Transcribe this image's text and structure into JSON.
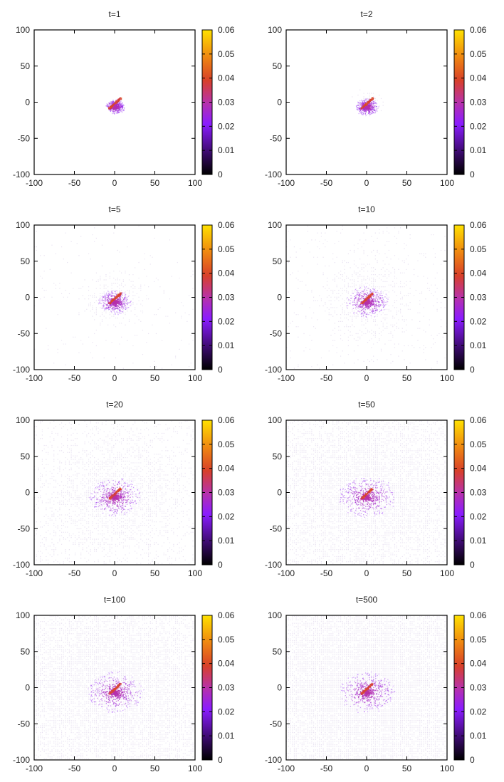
{
  "chart_data": [
    {
      "type": "heatmap",
      "title": "t=1",
      "xlim": [
        -100,
        100
      ],
      "ylim": [
        -100,
        100
      ],
      "xticks": [
        "-100",
        "-50",
        "0",
        "50",
        "100"
      ],
      "yticks": [
        "100",
        "50",
        "0",
        "-50",
        "-100"
      ],
      "colorbar": {
        "range": [
          0,
          0.06
        ],
        "ticks": [
          "0.06",
          "0.05",
          "0.04",
          "0.03",
          "0.02",
          "0.01",
          "0"
        ]
      },
      "spread_radius": 12,
      "fill_fraction": 0.0
    },
    {
      "type": "heatmap",
      "title": "t=2",
      "xlim": [
        -100,
        100
      ],
      "ylim": [
        -100,
        100
      ],
      "xticks": [
        "-100",
        "-50",
        "0",
        "50",
        "100"
      ],
      "yticks": [
        "100",
        "50",
        "0",
        "-50",
        "-100"
      ],
      "colorbar": {
        "range": [
          0,
          0.06
        ],
        "ticks": [
          "0.06",
          "0.05",
          "0.04",
          "0.03",
          "0.02",
          "0.01",
          "0"
        ]
      },
      "spread_radius": 22,
      "fill_fraction": 0.0
    },
    {
      "type": "heatmap",
      "title": "t=5",
      "xlim": [
        -100,
        100
      ],
      "ylim": [
        -100,
        100
      ],
      "xticks": [
        "-100",
        "-50",
        "0",
        "50",
        "100"
      ],
      "yticks": [
        "100",
        "50",
        "0",
        "-50",
        "-100"
      ],
      "colorbar": {
        "range": [
          0,
          0.06
        ],
        "ticks": [
          "0.06",
          "0.05",
          "0.04",
          "0.03",
          "0.02",
          "0.01",
          "0"
        ]
      },
      "spread_radius": 45,
      "fill_fraction": 0.05
    },
    {
      "type": "heatmap",
      "title": "t=10",
      "xlim": [
        -100,
        100
      ],
      "ylim": [
        -100,
        100
      ],
      "xticks": [
        "-100",
        "-50",
        "0",
        "50",
        "100"
      ],
      "yticks": [
        "100",
        "50",
        "0",
        "-50",
        "-100"
      ],
      "colorbar": {
        "range": [
          0,
          0.06
        ],
        "ticks": [
          "0.06",
          "0.05",
          "0.04",
          "0.03",
          "0.02",
          "0.01",
          "0"
        ]
      },
      "spread_radius": 70,
      "fill_fraction": 0.1
    },
    {
      "type": "heatmap",
      "title": "t=20",
      "xlim": [
        -100,
        100
      ],
      "ylim": [
        -100,
        100
      ],
      "xticks": [
        "-100",
        "-50",
        "0",
        "50",
        "100"
      ],
      "yticks": [
        "100",
        "50",
        "0",
        "-50",
        "-100"
      ],
      "colorbar": {
        "range": [
          0,
          0.06
        ],
        "ticks": [
          "0.06",
          "0.05",
          "0.04",
          "0.03",
          "0.02",
          "0.01",
          "0"
        ]
      },
      "spread_radius": 95,
      "fill_fraction": 0.35
    },
    {
      "type": "heatmap",
      "title": "t=50",
      "xlim": [
        -100,
        100
      ],
      "ylim": [
        -100,
        100
      ],
      "xticks": [
        "-100",
        "-50",
        "0",
        "50",
        "100"
      ],
      "yticks": [
        "100",
        "50",
        "0",
        "-50",
        "-100"
      ],
      "colorbar": {
        "range": [
          0,
          0.06
        ],
        "ticks": [
          "0.06",
          "0.05",
          "0.04",
          "0.03",
          "0.02",
          "0.01",
          "0"
        ]
      },
      "spread_radius": 130,
      "fill_fraction": 0.6
    },
    {
      "type": "heatmap",
      "title": "t=100",
      "xlim": [
        -100,
        100
      ],
      "ylim": [
        -100,
        100
      ],
      "xticks": [
        "-100",
        "-50",
        "0",
        "50",
        "100"
      ],
      "yticks": [
        "100",
        "50",
        "0",
        "-50",
        "-100"
      ],
      "colorbar": {
        "range": [
          0,
          0.06
        ],
        "ticks": [
          "0.06",
          "0.05",
          "0.04",
          "0.03",
          "0.02",
          "0.01",
          "0"
        ]
      },
      "spread_radius": 140,
      "fill_fraction": 0.75
    },
    {
      "type": "heatmap",
      "title": "t=500",
      "xlim": [
        -100,
        100
      ],
      "ylim": [
        -100,
        100
      ],
      "xticks": [
        "-100",
        "-50",
        "0",
        "50",
        "100"
      ],
      "yticks": [
        "100",
        "50",
        "0",
        "-50",
        "-100"
      ],
      "colorbar": {
        "range": [
          0,
          0.06
        ],
        "ticks": [
          "0.06",
          "0.05",
          "0.04",
          "0.03",
          "0.02",
          "0.01",
          "0"
        ]
      },
      "spread_radius": 145,
      "fill_fraction": 0.98
    }
  ]
}
